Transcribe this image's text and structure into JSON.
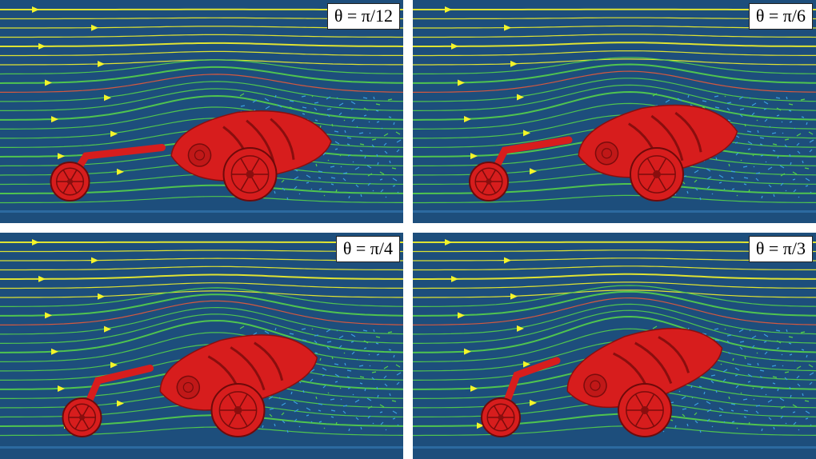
{
  "panels": [
    {
      "label": "θ = π/12",
      "angle_deg": 15
    },
    {
      "label": "θ = π/6",
      "angle_deg": 30
    },
    {
      "label": "θ = π/4",
      "angle_deg": 45
    },
    {
      "label": "θ = π/3",
      "angle_deg": 60
    }
  ],
  "colors": {
    "background": "#1d4e7c",
    "robot": "#d71d1d",
    "stream_fast": "#f4f42a",
    "stream_mid": "#55d14a",
    "stream_slow": "#3aa0e0",
    "stream_hot": "#e85a3a"
  }
}
